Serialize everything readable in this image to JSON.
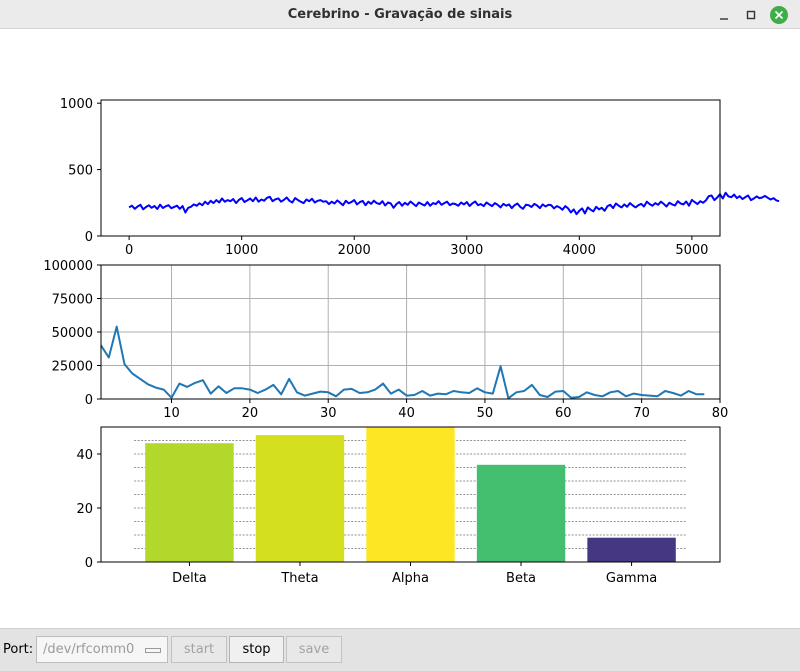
{
  "window": {
    "title": "Cerebrino - Gravação de sinais",
    "minimize_icon": "minimize-icon",
    "maximize_icon": "maximize-icon",
    "close_icon": "close-icon",
    "close_color": "#3fae4a"
  },
  "charts": {
    "chart_data": [
      {
        "type": "line",
        "name": "raw-signal",
        "xlim": [
          -250,
          5250
        ],
        "ylim": [
          0,
          1024
        ],
        "xticks": [
          0,
          1000,
          2000,
          3000,
          4000,
          5000
        ],
        "yticks": [
          0,
          500,
          1000
        ],
        "x_step": 25,
        "color": "#0000ff",
        "grid": false,
        "values": [
          215,
          228,
          205,
          222,
          235,
          201,
          218,
          231,
          212,
          226,
          203,
          236,
          211,
          224,
          232,
          209,
          219,
          228,
          205,
          225,
          177,
          212,
          220,
          238,
          228,
          246,
          232,
          258,
          240,
          265,
          248,
          270,
          252,
          282,
          258,
          270,
          262,
          278,
          248,
          272,
          285,
          256,
          268,
          282,
          262,
          290,
          258,
          275,
          266,
          288,
          295,
          262,
          276,
          283,
          258,
          272,
          290,
          265,
          252,
          285,
          270,
          258,
          248,
          275,
          262,
          280,
          252,
          265,
          270,
          258,
          262,
          240,
          258,
          245,
          268,
          250,
          232,
          265,
          246,
          255,
          270,
          238,
          255,
          264,
          232,
          258,
          242,
          266,
          248,
          240,
          262,
          230,
          252,
          245,
          212,
          240,
          255,
          228,
          250,
          235,
          260,
          242,
          225,
          252,
          240,
          230,
          255,
          228,
          248,
          240,
          262,
          235,
          248,
          258,
          232,
          245,
          240,
          228,
          252,
          238,
          255,
          226,
          246,
          260,
          232,
          240,
          225,
          252,
          238,
          225,
          248,
          235,
          215,
          242,
          228,
          238,
          210,
          232,
          245,
          220,
          205,
          235,
          232,
          218,
          242,
          230,
          210,
          238,
          222,
          235,
          232,
          208,
          225,
          215,
          198,
          225,
          208,
          178,
          200,
          165,
          190,
          208,
          170,
          215,
          198,
          185,
          220,
          200,
          212,
          190,
          225,
          235,
          210,
          245,
          228,
          215,
          238,
          220,
          248,
          230,
          215,
          232,
          242,
          222,
          258,
          240,
          228,
          248,
          235,
          258,
          242,
          222,
          250,
          238,
          230,
          262,
          245,
          238,
          260,
          228,
          272,
          255,
          240,
          262,
          250,
          268,
          300,
          305,
          270,
          290,
          315,
          282,
          325,
          298,
          292,
          312,
          285,
          300,
          278,
          292,
          305,
          270,
          282,
          298,
          285,
          290,
          302,
          288,
          275,
          285,
          268,
          262
        ]
      },
      {
        "type": "line",
        "name": "fft-spectrum",
        "xlim": [
          1,
          80
        ],
        "ylim": [
          0,
          100000
        ],
        "xticks": [
          10,
          20,
          30,
          40,
          50,
          60,
          70,
          80
        ],
        "yticks": [
          0,
          25000,
          50000,
          75000,
          100000
        ],
        "x_start": 1,
        "x_step": 1,
        "color": "#1f77b4",
        "grid": true,
        "values": [
          40000,
          31000,
          54000,
          26000,
          19000,
          15000,
          11000,
          8500,
          7000,
          1000,
          11500,
          9000,
          12000,
          14000,
          4000,
          9500,
          4500,
          8000,
          8000,
          7000,
          4500,
          7000,
          10500,
          3500,
          15000,
          5000,
          2500,
          4000,
          5500,
          5000,
          2000,
          7000,
          7500,
          4500,
          5000,
          7000,
          11500,
          4000,
          7000,
          2500,
          3000,
          6000,
          2500,
          4000,
          3500,
          6000,
          5000,
          4500,
          8000,
          5000,
          4000,
          24500,
          500,
          5000,
          6000,
          10500,
          3000,
          1500,
          5500,
          6000,
          1000,
          1500,
          5000,
          3000,
          2000,
          5000,
          6000,
          2000,
          4000,
          3000,
          2500,
          2000,
          6000,
          4500,
          2500,
          6000,
          3500,
          3500
        ]
      },
      {
        "type": "bar",
        "name": "band-power",
        "categories": [
          "Delta",
          "Theta",
          "Alpha",
          "Beta",
          "Gamma"
        ],
        "values": [
          44,
          47,
          50,
          36,
          9
        ],
        "colors": [
          "#b1d82b",
          "#d4e01e",
          "#fde725",
          "#44bf70",
          "#453781"
        ],
        "ylim": [
          0,
          50
        ],
        "yticks": [
          0,
          20,
          40
        ],
        "grid": true,
        "grid_lines": [
          5,
          10,
          15,
          20,
          25,
          30,
          35,
          40,
          45
        ]
      }
    ]
  },
  "controls": {
    "port_label": "Port:",
    "port_value": "/dev/rfcomm0",
    "port_dropdown_icon": "dropdown-arrow-icon",
    "start_label": "start",
    "stop_label": "stop",
    "save_label": "save"
  }
}
